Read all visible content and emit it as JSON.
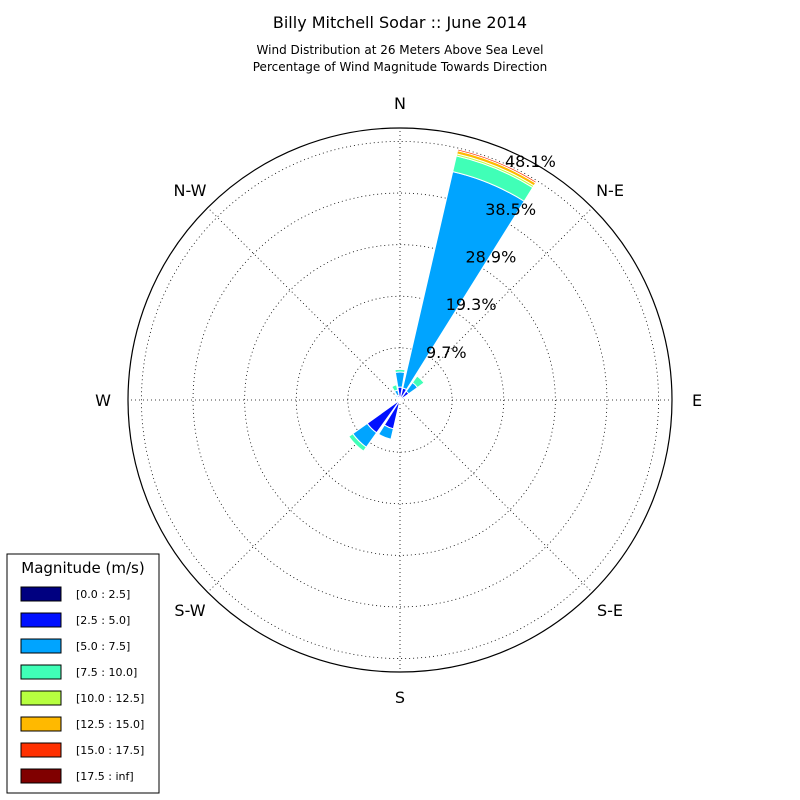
{
  "chart_data": {
    "type": "polar-bar",
    "title": "Billy Mitchell Sodar :: June 2014",
    "subtitle_lines": [
      "Wind Distribution at 26 Meters Above Sea Level",
      "Percentage of Wind Magnitude Towards Direction"
    ],
    "directions": [
      "N",
      "N-E",
      "E",
      "S-E",
      "S",
      "S-W",
      "W",
      "N-W"
    ],
    "ring_values": [
      9.7,
      19.3,
      28.9,
      38.5,
      48.1
    ],
    "ring_labels": [
      "9.7%",
      "19.3%",
      "28.9%",
      "38.5%",
      "48.1%"
    ],
    "rmax": 50.6,
    "legend": {
      "title": "Magnitude (m/s)",
      "placement": "bottom-left",
      "bins": [
        {
          "label": "[0.0 : 2.5]",
          "color": "#000080"
        },
        {
          "label": "[2.5 : 5.0]",
          "color": "#0010ff"
        },
        {
          "label": "[5.0 : 7.5]",
          "color": "#00a4ff"
        },
        {
          "label": "[7.5 : 10.0]",
          "color": "#40ffb7"
        },
        {
          "label": "[10.0 : 12.5]",
          "color": "#b7ff40"
        },
        {
          "label": "[12.5 : 15.0]",
          "color": "#ffb900"
        },
        {
          "label": "[15.0 : 17.5]",
          "color": "#ff3000"
        },
        {
          "label": "[17.5 : inf]",
          "color": "#800000"
        }
      ]
    },
    "sectors": [
      {
        "dir_deg": 0,
        "segments": [
          0.2,
          2.2,
          2.8,
          0.5,
          0,
          0,
          0,
          0
        ]
      },
      {
        "dir_deg": 22.5,
        "segments": [
          0.3,
          2.0,
          41.3,
          3.0,
          0.4,
          0.6,
          0.3,
          0
        ]
      },
      {
        "dir_deg": 45,
        "segments": [
          0.2,
          1.8,
          2.0,
          1.5,
          0.2,
          0,
          0,
          0
        ]
      },
      {
        "dir_deg": 67.5,
        "segments": [
          0.1,
          0.5,
          0.3,
          0.1,
          0,
          0,
          0,
          0
        ]
      },
      {
        "dir_deg": 90,
        "segments": [
          0.1,
          0.3,
          0.1,
          0,
          0,
          0,
          0,
          0
        ]
      },
      {
        "dir_deg": 112.5,
        "segments": [
          0.1,
          0.2,
          0,
          0,
          0,
          0,
          0,
          0
        ]
      },
      {
        "dir_deg": 135,
        "segments": [
          0.1,
          0.2,
          0,
          0,
          0,
          0,
          0,
          0
        ]
      },
      {
        "dir_deg": 157.5,
        "segments": [
          0.1,
          0.3,
          0,
          0,
          0,
          0,
          0,
          0
        ]
      },
      {
        "dir_deg": 180,
        "segments": [
          0.2,
          0.5,
          0,
          0,
          0,
          0,
          0,
          0
        ]
      },
      {
        "dir_deg": 202.5,
        "segments": [
          0.2,
          5.3,
          2.0,
          0,
          0,
          0,
          0,
          0
        ]
      },
      {
        "dir_deg": 225,
        "segments": [
          0.2,
          7.3,
          3.3,
          0.9,
          0,
          0,
          0,
          0
        ]
      },
      {
        "dir_deg": 247.5,
        "segments": [
          0.1,
          0.4,
          0.1,
          0,
          0,
          0,
          0,
          0
        ]
      },
      {
        "dir_deg": 270,
        "segments": [
          0.1,
          0.3,
          0,
          0,
          0,
          0,
          0,
          0
        ]
      },
      {
        "dir_deg": 292.5,
        "segments": [
          0.1,
          0.4,
          0.1,
          0,
          0,
          0,
          0,
          0
        ]
      },
      {
        "dir_deg": 315,
        "segments": [
          0.1,
          0.6,
          0.3,
          0.2,
          0,
          0,
          0,
          0
        ]
      },
      {
        "dir_deg": 337.5,
        "segments": [
          0.1,
          0.8,
          1.0,
          1.0,
          0,
          0,
          0,
          0
        ]
      }
    ]
  }
}
